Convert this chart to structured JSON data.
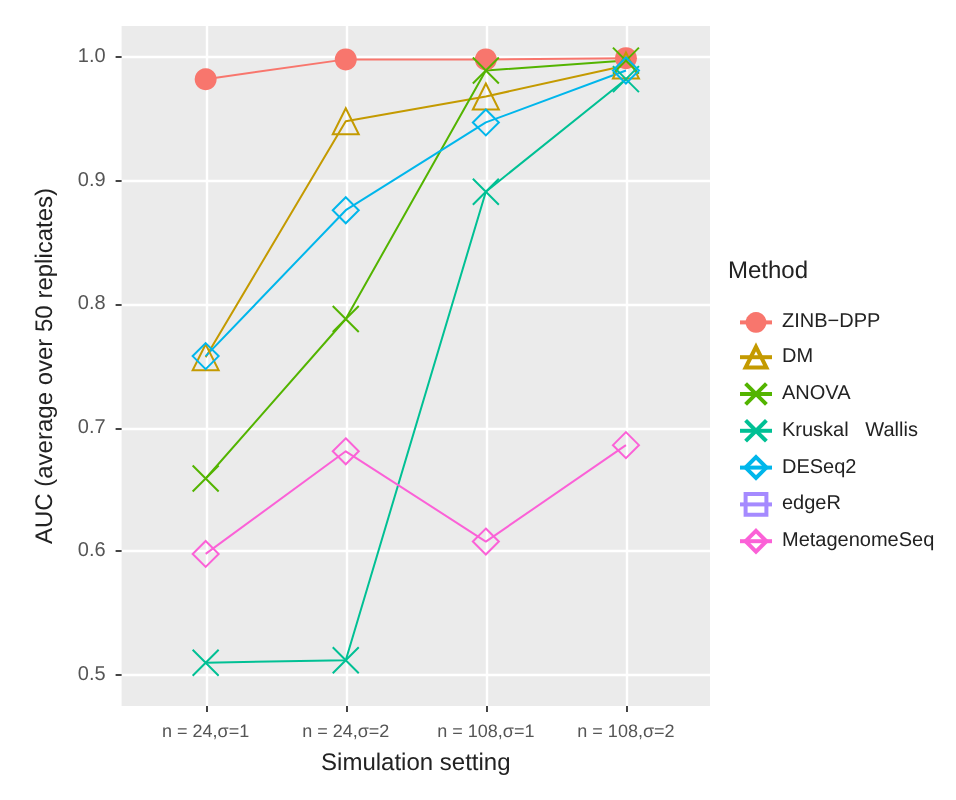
{
  "chart_data": {
    "type": "line",
    "xlabel": "Simulation setting",
    "ylabel": "AUC (average over 50 replicates)",
    "legend_title": "Method",
    "categories": [
      "n = 24,σ=1",
      "n = 24,σ=2",
      "n = 108,σ=1",
      "n = 108,σ=2"
    ],
    "series": [
      {
        "name": "ZINB−DPP",
        "color": "#f8766d",
        "marker": "circle",
        "values": [
          0.982,
          0.998,
          0.998,
          0.999
        ]
      },
      {
        "name": "DM",
        "color": "#c49a00",
        "marker": "triangle",
        "values": [
          0.757,
          0.948,
          0.968,
          0.993
        ]
      },
      {
        "name": "ANOVA",
        "color": "#53b400",
        "marker": "cross",
        "values": [
          0.659,
          0.788,
          0.989,
          0.997
        ]
      },
      {
        "name": "Kruskal   Wallis",
        "color": "#00c094",
        "marker": "cross",
        "values": [
          0.51,
          0.512,
          0.891,
          0.982
        ]
      },
      {
        "name": "DESeq2",
        "color": "#00b6eb",
        "marker": "diamond",
        "values": [
          0.758,
          0.876,
          0.947,
          0.989
        ]
      },
      {
        "name": "edgeR",
        "color": "#a58aff",
        "marker": "square",
        "values": [
          null,
          null,
          null,
          null
        ]
      },
      {
        "name": "MetagenomeSeq",
        "color": "#fb61d7",
        "marker": "diamond",
        "values": [
          0.598,
          0.681,
          0.608,
          0.686
        ]
      }
    ],
    "ylim": [
      0.475,
      1.025
    ],
    "yticks": [
      {
        "value": 0.5,
        "label": "0.5"
      },
      {
        "value": 0.6,
        "label": "0.6"
      },
      {
        "value": 0.7,
        "label": "0.7"
      },
      {
        "value": 0.8,
        "label": "0.8"
      },
      {
        "value": 0.9,
        "label": "0.9"
      },
      {
        "value": 1.0,
        "label": "1.0"
      }
    ],
    "grid": true,
    "legend": "right",
    "line_style": "solid"
  }
}
